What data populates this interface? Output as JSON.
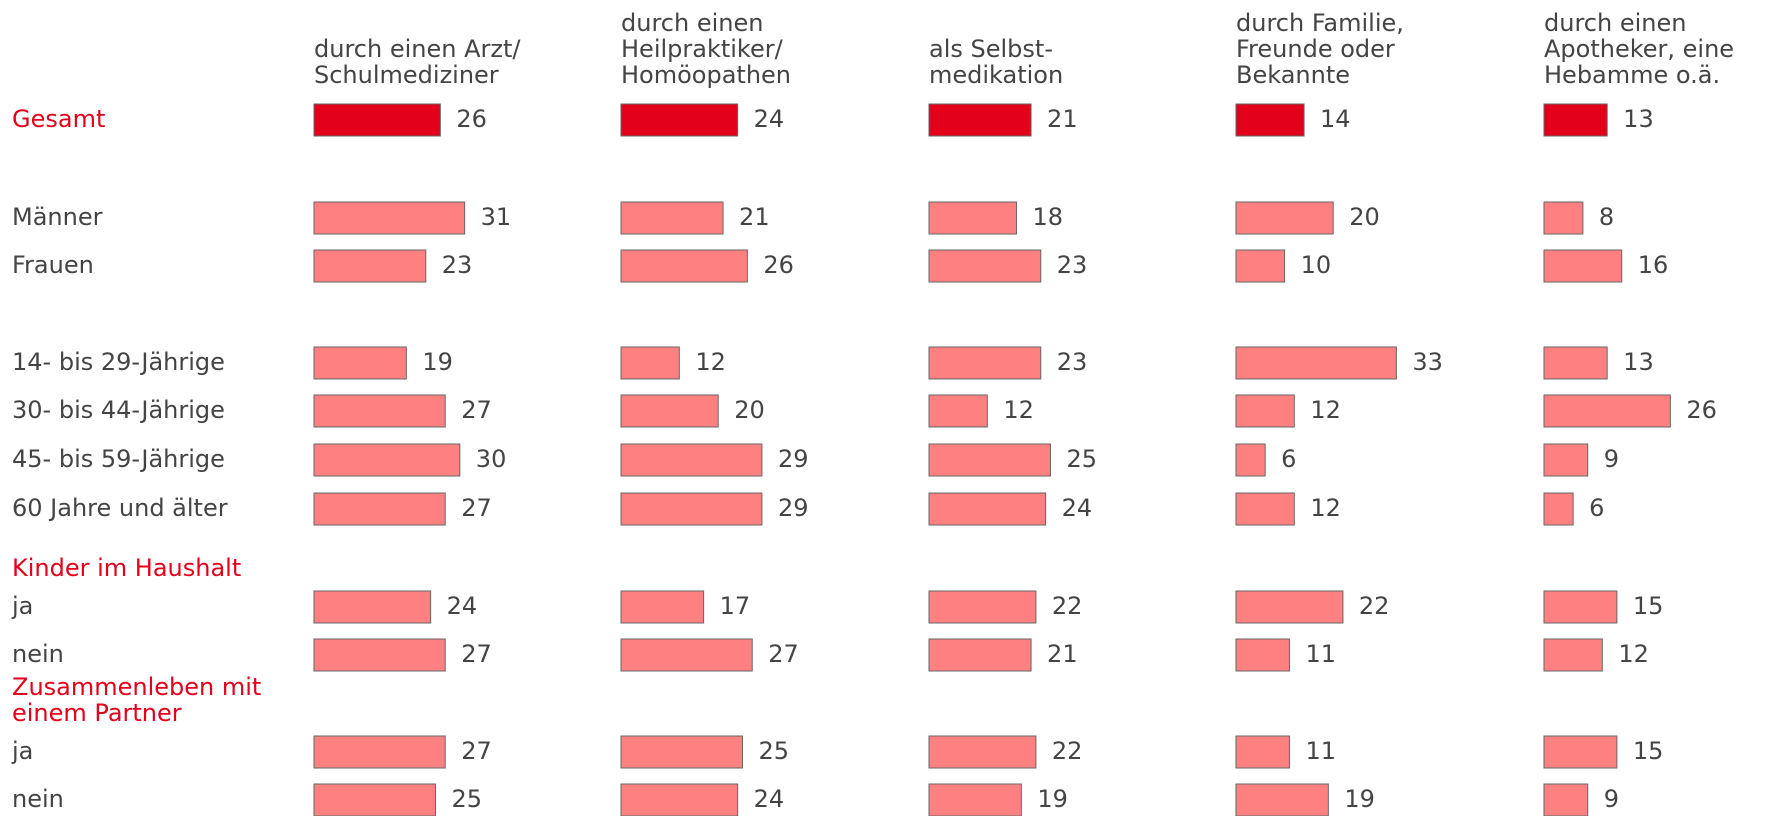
{
  "chart_data": {
    "type": "bar",
    "categories": [
      "Gesamt",
      "Männer",
      "Frauen",
      "14- bis 29-Jährige",
      "30- bis 44-Jährige",
      "45- bis 59-Jährige",
      "60 Jahre und älter",
      "ja",
      "nein",
      "ja",
      "nein"
    ],
    "sections": [
      {
        "title": [
          "Kinder im Haushalt"
        ],
        "start": 7
      },
      {
        "title": [
          "Zusammenleben mit",
          "einem Partner"
        ],
        "start": 9
      }
    ],
    "highlight_color": "#e2001a",
    "color": "#ff8080",
    "series": [
      {
        "name": [
          "durch einen Arzt/",
          "Schulmediziner"
        ],
        "values": [
          26,
          31,
          23,
          19,
          27,
          30,
          27,
          24,
          27,
          27,
          25
        ]
      },
      {
        "name": [
          "durch einen",
          "Heilpraktiker/",
          "Homöopathen"
        ],
        "values": [
          24,
          21,
          26,
          12,
          20,
          29,
          29,
          17,
          27,
          25,
          24
        ]
      },
      {
        "name": [
          "als Selbst-",
          "medikation"
        ],
        "values": [
          21,
          18,
          23,
          23,
          12,
          25,
          24,
          22,
          21,
          22,
          19
        ]
      },
      {
        "name": [
          "durch Familie,",
          "Freunde oder",
          "Bekannte"
        ],
        "values": [
          14,
          20,
          10,
          33,
          12,
          6,
          12,
          22,
          11,
          11,
          19
        ]
      },
      {
        "name": [
          "durch einen",
          "Apotheker, eine",
          "Hebamme o.ä."
        ],
        "values": [
          13,
          8,
          16,
          13,
          26,
          9,
          6,
          15,
          12,
          15,
          9
        ]
      }
    ]
  }
}
